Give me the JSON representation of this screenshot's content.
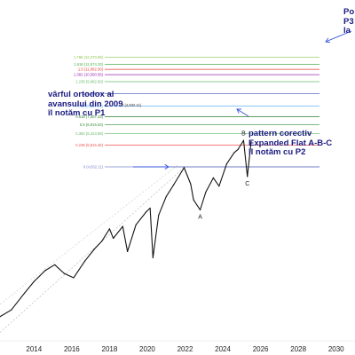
{
  "chart_data": {
    "type": "line",
    "x_axis": {
      "range": [
        2012.2,
        2031.0
      ],
      "ticks": [
        "2014",
        "2016",
        "2018",
        "2020",
        "2022",
        "2024",
        "2026",
        "2028",
        "2030"
      ]
    },
    "y_axis": {
      "scale": "log",
      "range": [
        1150,
        20000
      ]
    },
    "grid": false,
    "fib_levels": [
      {
        "ratio": "1.786",
        "value": "12,270.09",
        "color": "#8bc34a"
      },
      {
        "ratio": "1.618",
        "value": "11,574.33",
        "color": "#4caf50"
      },
      {
        "ratio": "1.5",
        "value": "11,082.30",
        "color": "#e53935"
      },
      {
        "ratio": "1.382",
        "value": "10,590.58",
        "color": "#9c27b0"
      },
      {
        "ratio": "1.236",
        "value": "9,982.60",
        "color": "#66bb6a"
      },
      {
        "ratio": "1",
        "value": "9,000.35",
        "color": "#3f51b5"
      },
      {
        "ratio": "0.786",
        "value": "8,107.24",
        "color": "#64b5f6"
      },
      {
        "ratio": "0.618",
        "value": "7,407.23",
        "color": "#2e7d32"
      },
      {
        "ratio": "0.5",
        "value": "6,915.53",
        "color": "#388e3c"
      },
      {
        "ratio": "0.382",
        "value": "6,423.69",
        "color": "#66bb6a"
      },
      {
        "ratio": "0.236",
        "value": "5,815.46",
        "color": "#ef5350"
      },
      {
        "ratio": "0",
        "value": "4,832.11",
        "color": "#7986cb"
      }
    ],
    "wave_points": [
      {
        "label": "A",
        "x": 2022.8,
        "y": 3350
      },
      {
        "label": "B",
        "x": 2025.1,
        "y": 6050
      },
      {
        "label": "C",
        "x": 2025.3,
        "y": 4450
      }
    ],
    "series": [
      {
        "x": [
          2012.2,
          2012.8,
          2013.5,
          2014.0,
          2014.6,
          2015.1,
          2015.6,
          2016.1,
          2016.7,
          2017.2,
          2017.6,
          2018.0,
          2018.2,
          2018.7,
          2018.95,
          2019.4,
          2019.95,
          2020.15,
          2020.3,
          2020.6,
          2021.0,
          2021.4,
          2021.95,
          2022.3,
          2022.45,
          2022.8,
          2023.1,
          2023.5,
          2023.8,
          2024.2,
          2024.6,
          2024.8,
          2025.1,
          2025.3,
          2025.5
        ],
        "y": [
          1350,
          1430,
          1650,
          1820,
          2000,
          2100,
          1950,
          1880,
          2170,
          2400,
          2570,
          2850,
          2630,
          2910,
          2350,
          2950,
          3300,
          3400,
          2230,
          3200,
          3750,
          4150,
          4800,
          4170,
          3650,
          3350,
          3900,
          4400,
          4100,
          4950,
          5450,
          5600,
          6050,
          4450,
          6000
        ]
      }
    ]
  },
  "annotations": {
    "left": [
      "vârful ortodox al",
      "avansului din 2009",
      "îl notăm cu P1"
    ],
    "right": [
      "pattern corectiv",
      "Expanded Flat A-B-C",
      "îl notăm cu P2"
    ],
    "top_right": [
      "Po",
      "P3",
      "la"
    ],
    "p1_label": "0 (4,832.11)"
  }
}
